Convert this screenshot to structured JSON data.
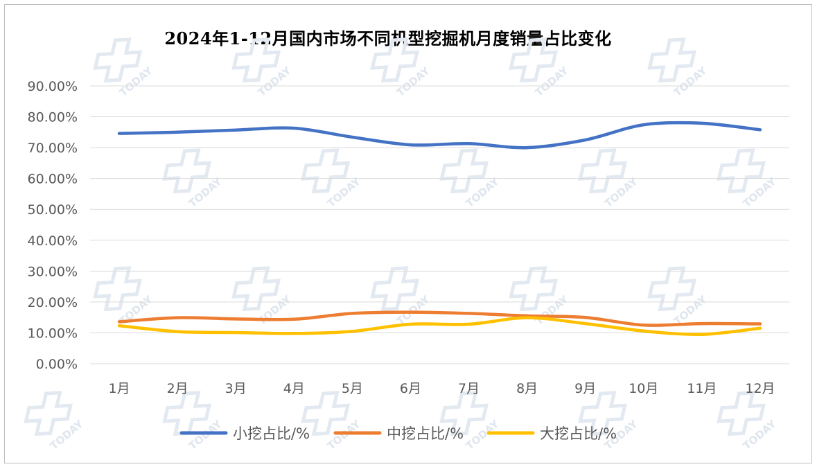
{
  "chart_data": {
    "type": "line",
    "title": "2024年1-12月国内市场不同机型挖掘机月度销量占比变化",
    "categories": [
      "1月",
      "2月",
      "3月",
      "4月",
      "5月",
      "6月",
      "7月",
      "8月",
      "9月",
      "10月",
      "11月",
      "12月"
    ],
    "y_ticks": [
      "0.00%",
      "10.00%",
      "20.00%",
      "30.00%",
      "40.00%",
      "50.00%",
      "60.00%",
      "70.00%",
      "80.00%",
      "90.00%"
    ],
    "ylim": [
      0,
      90
    ],
    "grid": true,
    "legend_position": "bottom",
    "series": [
      {
        "name": "小挖占比/%",
        "color": "#4472C4",
        "values": [
          74.6,
          75.0,
          75.7,
          76.3,
          73.4,
          70.9,
          71.3,
          70.0,
          72.5,
          77.4,
          77.9,
          75.8
        ]
      },
      {
        "name": "中挖占比/%",
        "color": "#ED7D31",
        "values": [
          13.6,
          14.9,
          14.5,
          14.4,
          16.3,
          16.7,
          16.3,
          15.5,
          15.0,
          12.5,
          13.0,
          12.9
        ]
      },
      {
        "name": "大挖占比/%",
        "color": "#FFC000",
        "values": [
          12.3,
          10.4,
          10.1,
          9.8,
          10.5,
          12.8,
          12.8,
          14.9,
          13.0,
          10.6,
          9.5,
          11.5
        ]
      }
    ]
  },
  "watermark": {
    "text": "TODAY"
  }
}
